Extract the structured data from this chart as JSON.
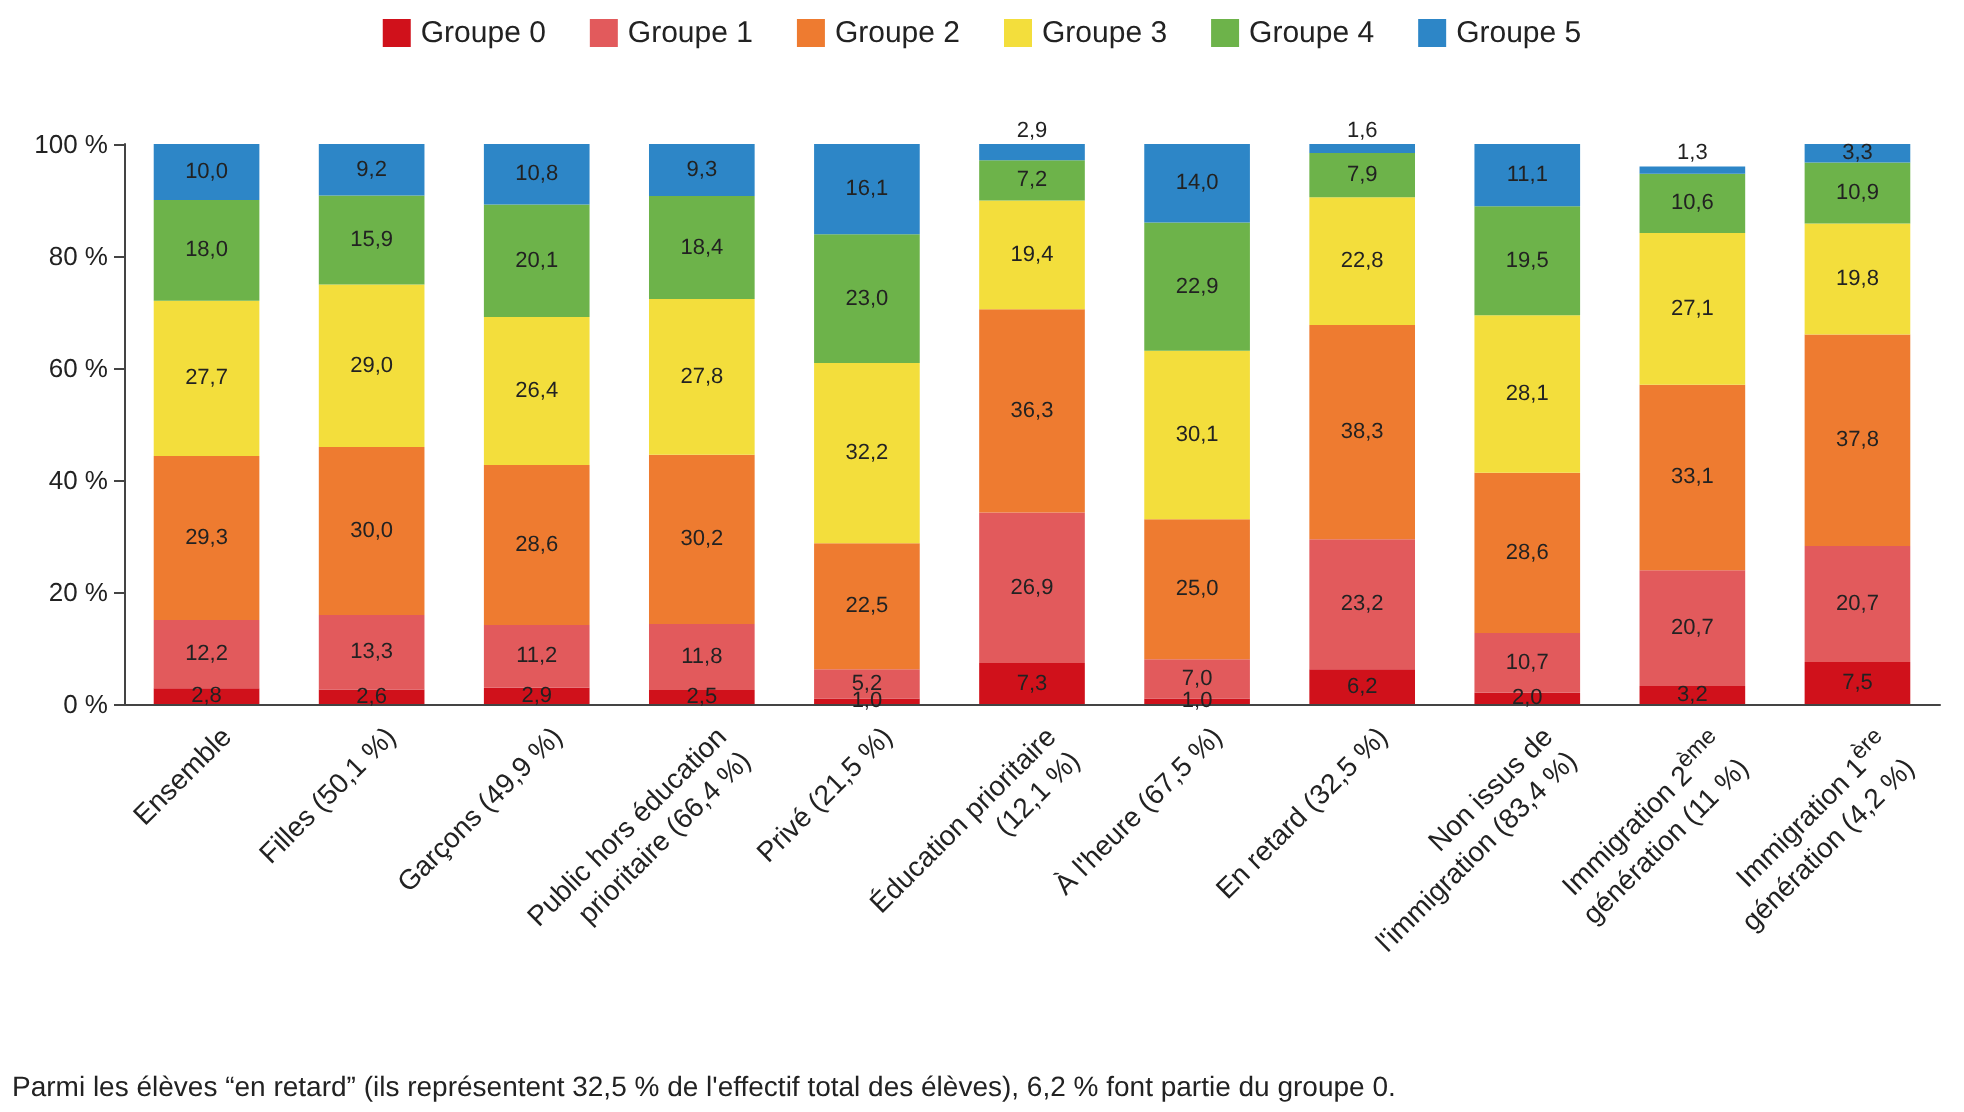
{
  "chart_data": {
    "type": "bar",
    "stacked": true,
    "legend": "top",
    "grid": false,
    "categories": [
      "Ensemble",
      "Filles (50,1 %)",
      "Garçons (49,9 %)",
      "Public hors éducation prioritaire (66,4 %)",
      "Privé (21,5 %)",
      "Éducation prioritaire (12,1 %)",
      "À l'heure (67,5 %)",
      "En retard (32,5 %)",
      "Non issus de l'immigration (83,4 %)",
      "Immigration 2$^{ème}$ génération (11 %)",
      "Immigration 1$^{ère}$ génération (4,2 %)"
    ],
    "ylim": [
      0,
      100
    ],
    "yticks": [
      {
        "value": 0,
        "label": "0 %"
      },
      {
        "value": 20,
        "label": "20 %"
      },
      {
        "value": 40,
        "label": "40 %"
      },
      {
        "value": 60,
        "label": "60 %"
      },
      {
        "value": 80,
        "label": "80 %"
      },
      {
        "value": 100,
        "label": "100 %"
      }
    ],
    "series": [
      {
        "name": "Groupe 0",
        "color": "#d0111b",
        "values": [
          2.8,
          2.6,
          2.9,
          2.5,
          1.0,
          7.3,
          1.0,
          6.2,
          2.0,
          3.2,
          7.5
        ],
        "value_labels": [
          "2,8",
          "2,6",
          "2,9",
          "2,5",
          "1,0",
          "7,3",
          "1,0",
          "6,2",
          "2,0",
          "3,2",
          "7,5"
        ]
      },
      {
        "name": "Groupe 1",
        "color": "#e25a5c",
        "values": [
          12.2,
          13.3,
          11.2,
          11.8,
          5.2,
          26.9,
          7.0,
          23.2,
          10.7,
          20.7,
          20.7
        ],
        "value_labels": [
          "12,2",
          "13,3",
          "11,2",
          "11,8",
          "5,2",
          "26,9",
          "7,0",
          "23,2",
          "10,7",
          "20,7",
          "20,7"
        ]
      },
      {
        "name": "Groupe 2",
        "color": "#ee7b30",
        "values": [
          29.3,
          30.0,
          28.6,
          30.2,
          22.5,
          36.3,
          25.0,
          38.3,
          28.6,
          33.1,
          37.8
        ],
        "value_labels": [
          "29,3",
          "30,0",
          "28,6",
          "30,2",
          "22,5",
          "36,3",
          "25,0",
          "38,3",
          "28,6",
          "33,1",
          "37,8"
        ]
      },
      {
        "name": "Groupe 3",
        "color": "#f3de3c",
        "values": [
          27.7,
          29.0,
          26.4,
          27.8,
          32.2,
          19.4,
          30.1,
          22.8,
          28.1,
          27.1,
          19.8
        ],
        "value_labels": [
          "27,7",
          "29,0",
          "26,4",
          "27,8",
          "32,2",
          "19,4",
          "30,1",
          "22,8",
          "28,1",
          "27,1",
          "19,8"
        ]
      },
      {
        "name": "Groupe 4",
        "color": "#6db34a",
        "values": [
          18.0,
          15.9,
          20.1,
          18.4,
          23.0,
          7.2,
          22.9,
          7.9,
          19.5,
          10.6,
          10.9
        ],
        "value_labels": [
          "18,0",
          "15,9",
          "20,1",
          "18,4",
          "23,0",
          "7,2",
          "22,9",
          "7,9",
          "19,5",
          "10,6",
          "10,9"
        ]
      },
      {
        "name": "Groupe 5",
        "color": "#2d86c7",
        "values": [
          10.0,
          9.2,
          10.8,
          9.3,
          16.1,
          2.9,
          14.0,
          1.6,
          11.1,
          1.3,
          3.3
        ],
        "value_labels": [
          "10,0",
          "9,2",
          "10,8",
          "9,3",
          "16,1",
          "2,9",
          "14,0",
          "1,6",
          "11,1",
          "1,3",
          "3,3"
        ]
      }
    ],
    "annotations": [
      "Parmi les élèves “en retard” (ils représentent 32,5 % de l'effectif total des élèves), 6,2 % font partie du groupe 0."
    ]
  }
}
